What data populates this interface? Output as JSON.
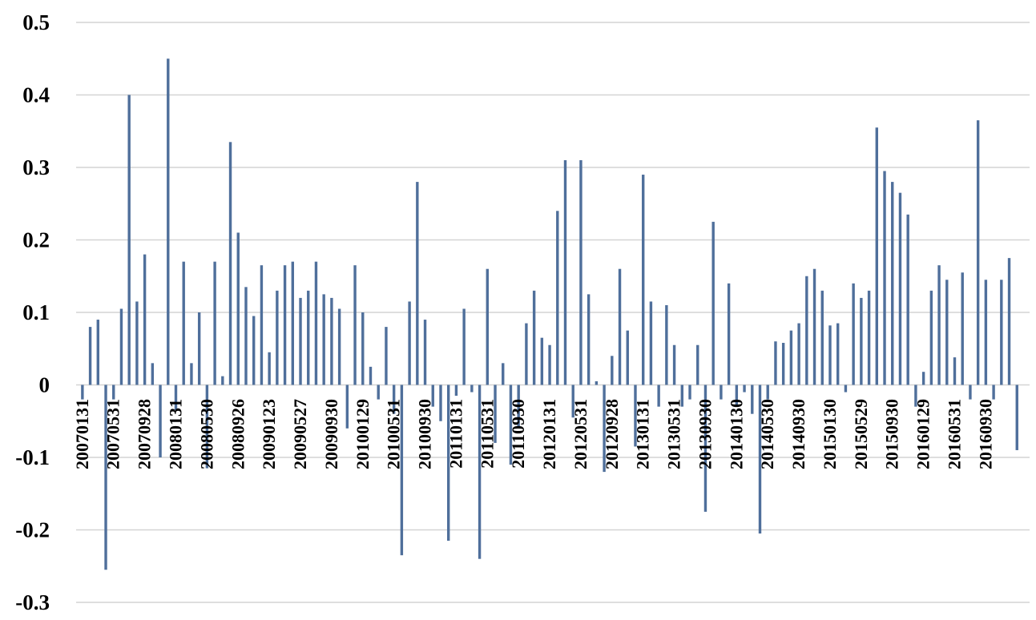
{
  "chart_data": {
    "type": "bar",
    "title": "",
    "xlabel": "",
    "ylabel": "",
    "ylim": [
      -0.3,
      0.5
    ],
    "yticks": [
      "0.5",
      "0.4",
      "0.3",
      "0.2",
      "0.1",
      "0",
      "-0.1",
      "-0.2",
      "-0.3"
    ],
    "ytick_values": [
      0.5,
      0.4,
      0.3,
      0.2,
      0.1,
      0,
      -0.1,
      -0.2,
      -0.3
    ],
    "grid": true,
    "legend": "none",
    "bar_color": "#4f6f9b",
    "grid_color": "#d4d4d4",
    "category_labels": [
      {
        "index": 0,
        "text": "20070131"
      },
      {
        "index": 4,
        "text": "20070531"
      },
      {
        "index": 8,
        "text": "20070928"
      },
      {
        "index": 12,
        "text": "20080131"
      },
      {
        "index": 16,
        "text": "20080530"
      },
      {
        "index": 20,
        "text": "20080926"
      },
      {
        "index": 24,
        "text": "20090123"
      },
      {
        "index": 28,
        "text": "20090527"
      },
      {
        "index": 32,
        "text": "20090930"
      },
      {
        "index": 36,
        "text": "20100129"
      },
      {
        "index": 40,
        "text": "20100531"
      },
      {
        "index": 44,
        "text": "20100930"
      },
      {
        "index": 48,
        "text": "20110131"
      },
      {
        "index": 52,
        "text": "20110531"
      },
      {
        "index": 56,
        "text": "20110930"
      },
      {
        "index": 60,
        "text": "20120131"
      },
      {
        "index": 64,
        "text": "20120531"
      },
      {
        "index": 68,
        "text": "20120928"
      },
      {
        "index": 72,
        "text": "20130131"
      },
      {
        "index": 76,
        "text": "20130531"
      },
      {
        "index": 80,
        "text": "20130930"
      },
      {
        "index": 84,
        "text": "20140130"
      },
      {
        "index": 88,
        "text": "20140530"
      },
      {
        "index": 92,
        "text": "20140930"
      },
      {
        "index": 96,
        "text": "20150130"
      },
      {
        "index": 100,
        "text": "20150529"
      },
      {
        "index": 104,
        "text": "20150930"
      },
      {
        "index": 108,
        "text": "20160129"
      },
      {
        "index": 112,
        "text": "20160531"
      },
      {
        "index": 116,
        "text": "20160930"
      }
    ],
    "values": [
      -0.02,
      0.08,
      0.09,
      -0.255,
      -0.02,
      0.105,
      0.4,
      0.115,
      0.18,
      0.03,
      -0.1,
      0.45,
      -0.035,
      0.17,
      0.03,
      0.1,
      -0.115,
      0.17,
      0.012,
      0.335,
      0.21,
      0.135,
      0.095,
      0.165,
      0.045,
      0.13,
      0.165,
      0.17,
      0.12,
      0.13,
      0.17,
      0.125,
      0.12,
      0.105,
      -0.06,
      0.165,
      0.1,
      0.025,
      -0.02,
      0.08,
      -0.04,
      -0.235,
      0.115,
      0.28,
      0.09,
      -0.03,
      -0.05,
      -0.215,
      -0.015,
      0.105,
      -0.01,
      -0.24,
      0.16,
      -0.08,
      0.03,
      -0.11,
      -0.06,
      0.085,
      0.13,
      0.065,
      0.055,
      0.24,
      0.31,
      -0.045,
      0.31,
      0.125,
      0.005,
      -0.12,
      0.04,
      0.16,
      0.075,
      -0.085,
      0.29,
      0.115,
      -0.03,
      0.11,
      0.055,
      -0.03,
      -0.02,
      0.055,
      -0.175,
      0.225,
      -0.02,
      0.14,
      -0.03,
      -0.01,
      -0.04,
      -0.205,
      -0.02,
      0.06,
      0.058,
      0.075,
      0.085,
      0.15,
      0.16,
      0.13,
      0.082,
      0.085,
      -0.01,
      0.14,
      0.12,
      0.13,
      0.355,
      0.295,
      0.28,
      0.265,
      0.235,
      -0.03,
      0.018,
      0.13,
      0.165,
      0.145,
      0.038,
      0.155,
      -0.02,
      0.365,
      0.145,
      -0.02,
      0.145,
      0.175,
      -0.09
    ]
  }
}
